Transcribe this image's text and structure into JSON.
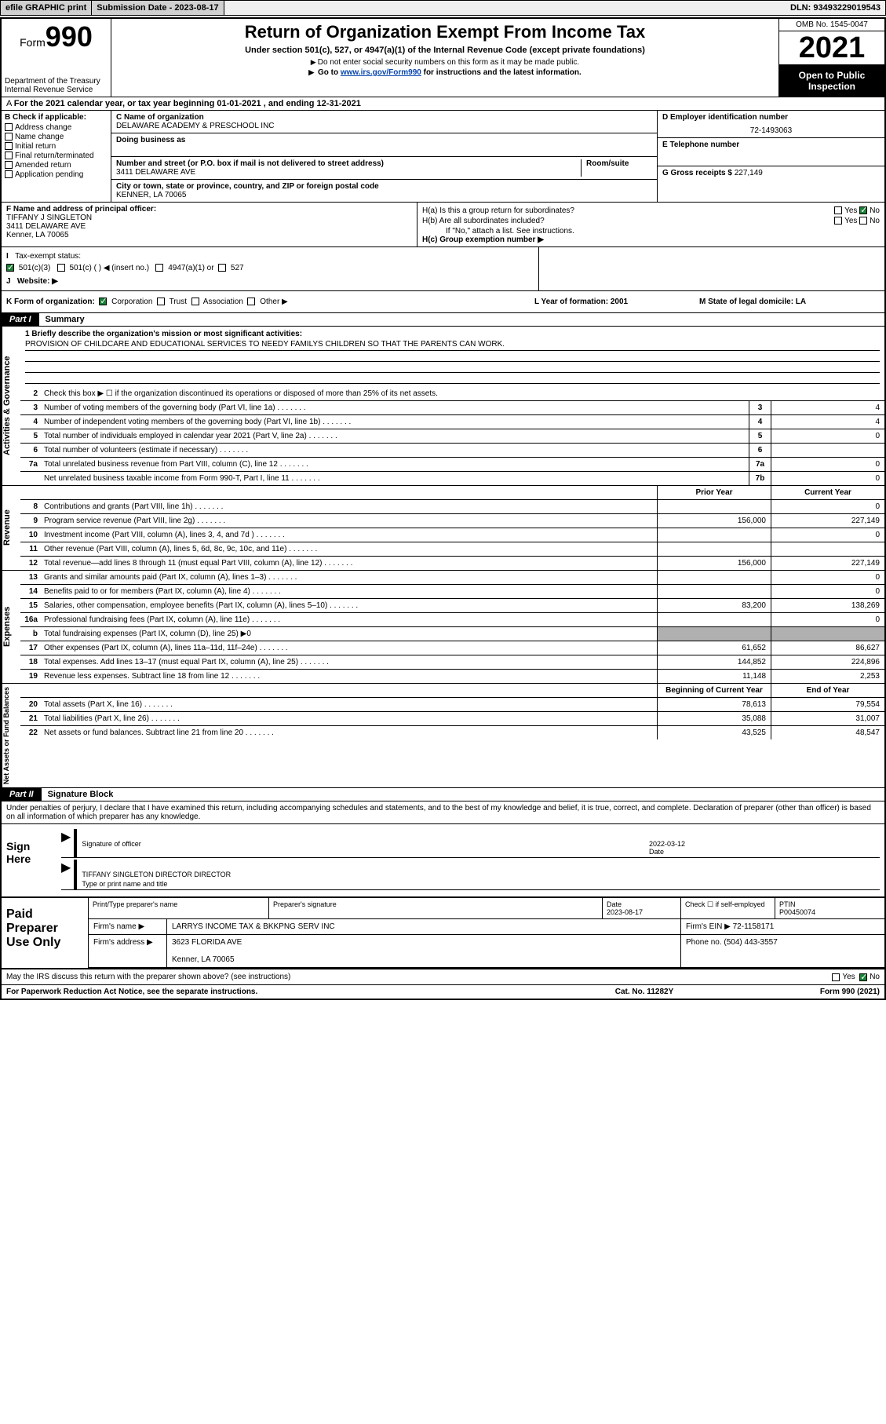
{
  "topbar": {
    "efile_label": "efile GRAPHIC print",
    "submission_label": "Submission Date - 2023-08-17",
    "dln": "DLN: 93493229019543"
  },
  "header": {
    "form_label": "Form",
    "form_number": "990",
    "dept": "Department of the Treasury",
    "irs": "Internal Revenue Service",
    "title": "Return of Organization Exempt From Income Tax",
    "subtitle": "Under section 501(c), 527, or 4947(a)(1) of the Internal Revenue Code (except private foundations)",
    "note1": "Do not enter social security numbers on this form as it may be made public.",
    "note2_pre": "Go to ",
    "note2_link": "www.irs.gov/Form990",
    "note2_post": " for instructions and the latest information.",
    "omb": "OMB No. 1545-0047",
    "year": "2021",
    "open": "Open to Public Inspection"
  },
  "rowA": "For the 2021 calendar year, or tax year beginning 01-01-2021   , and ending 12-31-2021",
  "colB": {
    "label": "B Check if applicable:",
    "items": [
      "Address change",
      "Name change",
      "Initial return",
      "Final return/terminated",
      "Amended return",
      "Application pending"
    ]
  },
  "colC": {
    "name_lbl": "C Name of organization",
    "name": "DELAWARE ACADEMY & PRESCHOOL INC",
    "dba_lbl": "Doing business as",
    "addr_lbl": "Number and street (or P.O. box if mail is not delivered to street address)",
    "room_lbl": "Room/suite",
    "addr": "3411 DELAWARE AVE",
    "city_lbl": "City or town, state or province, country, and ZIP or foreign postal code",
    "city": "Kenner, LA  70065"
  },
  "colD": {
    "ein_lbl": "D Employer identification number",
    "ein": "72-1493063",
    "phone_lbl": "E Telephone number",
    "gross_lbl": "G Gross receipts $",
    "gross": "227,149"
  },
  "officer": {
    "lbl": "F  Name and address of principal officer:",
    "name": "TIFFANY J SINGLETON",
    "addr1": "3411 DELAWARE AVE",
    "addr2": "Kenner, LA  70065",
    "ha": "H(a)  Is this a group return for subordinates?",
    "hb": "H(b)  Are all subordinates included?",
    "hb_note": "If \"No,\" attach a list. See instructions.",
    "hc": "H(c)  Group exemption number ▶",
    "yes": "Yes",
    "no": "No"
  },
  "rowI": {
    "label": "Tax-exempt status:",
    "o1": "501(c)(3)",
    "o2": "501(c) (  ) ◀ (insert no.)",
    "o3": "4947(a)(1) or",
    "o4": "527"
  },
  "rowJ": {
    "label": "Website: ▶"
  },
  "rowK": {
    "label": "K Form of organization:",
    "o1": "Corporation",
    "o2": "Trust",
    "o3": "Association",
    "o4": "Other ▶",
    "l_label": "L Year of formation: 2001",
    "m_label": "M State of legal domicile: LA"
  },
  "part1": {
    "tag": "Part I",
    "title": "Summary"
  },
  "mission": {
    "lbl": "1   Briefly describe the organization's mission or most significant activities:",
    "txt": "PROVISION OF CHILDCARE AND EDUCATIONAL SERVICES TO NEEDY FAMILYS CHILDREN SO THAT THE PARENTS CAN WORK."
  },
  "sidebars": {
    "gov": "Activities & Governance",
    "rev": "Revenue",
    "exp": "Expenses",
    "net": "Net Assets or Fund Balances"
  },
  "gov_lines": [
    {
      "n": "2",
      "d": "Check this box ▶ ☐  if the organization discontinued its operations or disposed of more than 25% of its net assets."
    },
    {
      "n": "3",
      "d": "Number of voting members of the governing body (Part VI, line 1a)",
      "box": "3",
      "v": "4"
    },
    {
      "n": "4",
      "d": "Number of independent voting members of the governing body (Part VI, line 1b)",
      "box": "4",
      "v": "4"
    },
    {
      "n": "5",
      "d": "Total number of individuals employed in calendar year 2021 (Part V, line 2a)",
      "box": "5",
      "v": "0"
    },
    {
      "n": "6",
      "d": "Total number of volunteers (estimate if necessary)",
      "box": "6",
      "v": ""
    },
    {
      "n": "7a",
      "d": "Total unrelated business revenue from Part VIII, column (C), line 12",
      "box": "7a",
      "v": "0"
    },
    {
      "n": "",
      "d": "Net unrelated business taxable income from Form 990-T, Part I, line 11",
      "box": "7b",
      "v": "0"
    }
  ],
  "col_hdrs": {
    "prior": "Prior Year",
    "current": "Current Year",
    "begin": "Beginning of Current Year",
    "end": "End of Year"
  },
  "rev_lines": [
    {
      "n": "8",
      "d": "Contributions and grants (Part VIII, line 1h)",
      "p": "",
      "c": "0"
    },
    {
      "n": "9",
      "d": "Program service revenue (Part VIII, line 2g)",
      "p": "156,000",
      "c": "227,149"
    },
    {
      "n": "10",
      "d": "Investment income (Part VIII, column (A), lines 3, 4, and 7d )",
      "p": "",
      "c": "0"
    },
    {
      "n": "11",
      "d": "Other revenue (Part VIII, column (A), lines 5, 6d, 8c, 9c, 10c, and 11e)",
      "p": "",
      "c": ""
    },
    {
      "n": "12",
      "d": "Total revenue—add lines 8 through 11 (must equal Part VIII, column (A), line 12)",
      "p": "156,000",
      "c": "227,149"
    }
  ],
  "exp_lines": [
    {
      "n": "13",
      "d": "Grants and similar amounts paid (Part IX, column (A), lines 1–3)",
      "p": "",
      "c": "0"
    },
    {
      "n": "14",
      "d": "Benefits paid to or for members (Part IX, column (A), line 4)",
      "p": "",
      "c": "0"
    },
    {
      "n": "15",
      "d": "Salaries, other compensation, employee benefits (Part IX, column (A), lines 5–10)",
      "p": "83,200",
      "c": "138,269"
    },
    {
      "n": "16a",
      "d": "Professional fundraising fees (Part IX, column (A), line 11e)",
      "p": "",
      "c": "0"
    },
    {
      "n": "b",
      "d": "Total fundraising expenses (Part IX, column (D), line 25) ▶0",
      "grey": true
    },
    {
      "n": "17",
      "d": "Other expenses (Part IX, column (A), lines 11a–11d, 11f–24e)",
      "p": "61,652",
      "c": "86,627"
    },
    {
      "n": "18",
      "d": "Total expenses. Add lines 13–17 (must equal Part IX, column (A), line 25)",
      "p": "144,852",
      "c": "224,896"
    },
    {
      "n": "19",
      "d": "Revenue less expenses. Subtract line 18 from line 12",
      "p": "11,148",
      "c": "2,253"
    }
  ],
  "net_lines": [
    {
      "n": "20",
      "d": "Total assets (Part X, line 16)",
      "p": "78,613",
      "c": "79,554"
    },
    {
      "n": "21",
      "d": "Total liabilities (Part X, line 26)",
      "p": "35,088",
      "c": "31,007"
    },
    {
      "n": "22",
      "d": "Net assets or fund balances. Subtract line 21 from line 20",
      "p": "43,525",
      "c": "48,547"
    }
  ],
  "part2": {
    "tag": "Part II",
    "title": "Signature Block"
  },
  "penalties": "Under penalties of perjury, I declare that I have examined this return, including accompanying schedules and statements, and to the best of my knowledge and belief, it is true, correct, and complete. Declaration of preparer (other than officer) is based on all information of which preparer has any knowledge.",
  "sign": {
    "here": "Sign Here",
    "sig_lbl": "Signature of officer",
    "date_lbl": "Date",
    "date": "2022-03-12",
    "name": "TIFFANY SINGLETON DIRECTOR  DIRECTOR",
    "name_lbl": "Type or print name and title"
  },
  "prep": {
    "title": "Paid Preparer Use Only",
    "h1": "Print/Type preparer's name",
    "h2": "Preparer's signature",
    "h3": "Date",
    "h3v": "2023-08-17",
    "h4": "Check ☐ if self-employed",
    "h5": "PTIN",
    "h5v": "P00450074",
    "firm_lbl": "Firm's name      ▶",
    "firm": "LARRYS INCOME TAX & BKKPNG SERV INC",
    "ein_lbl": "Firm's EIN ▶",
    "ein": "72-1158171",
    "addr_lbl": "Firm's address ▶",
    "addr": "3623 FLORIDA AVE",
    "addr2": "Kenner, LA  70065",
    "phone_lbl": "Phone no.",
    "phone": "(504) 443-3557"
  },
  "may": {
    "q": "May the IRS discuss this return with the preparer shown above? (see instructions)",
    "yes": "Yes",
    "no": "No"
  },
  "footer": {
    "f1": "For Paperwork Reduction Act Notice, see the separate instructions.",
    "f2": "Cat. No. 11282Y",
    "f3": "Form 990 (2021)"
  }
}
